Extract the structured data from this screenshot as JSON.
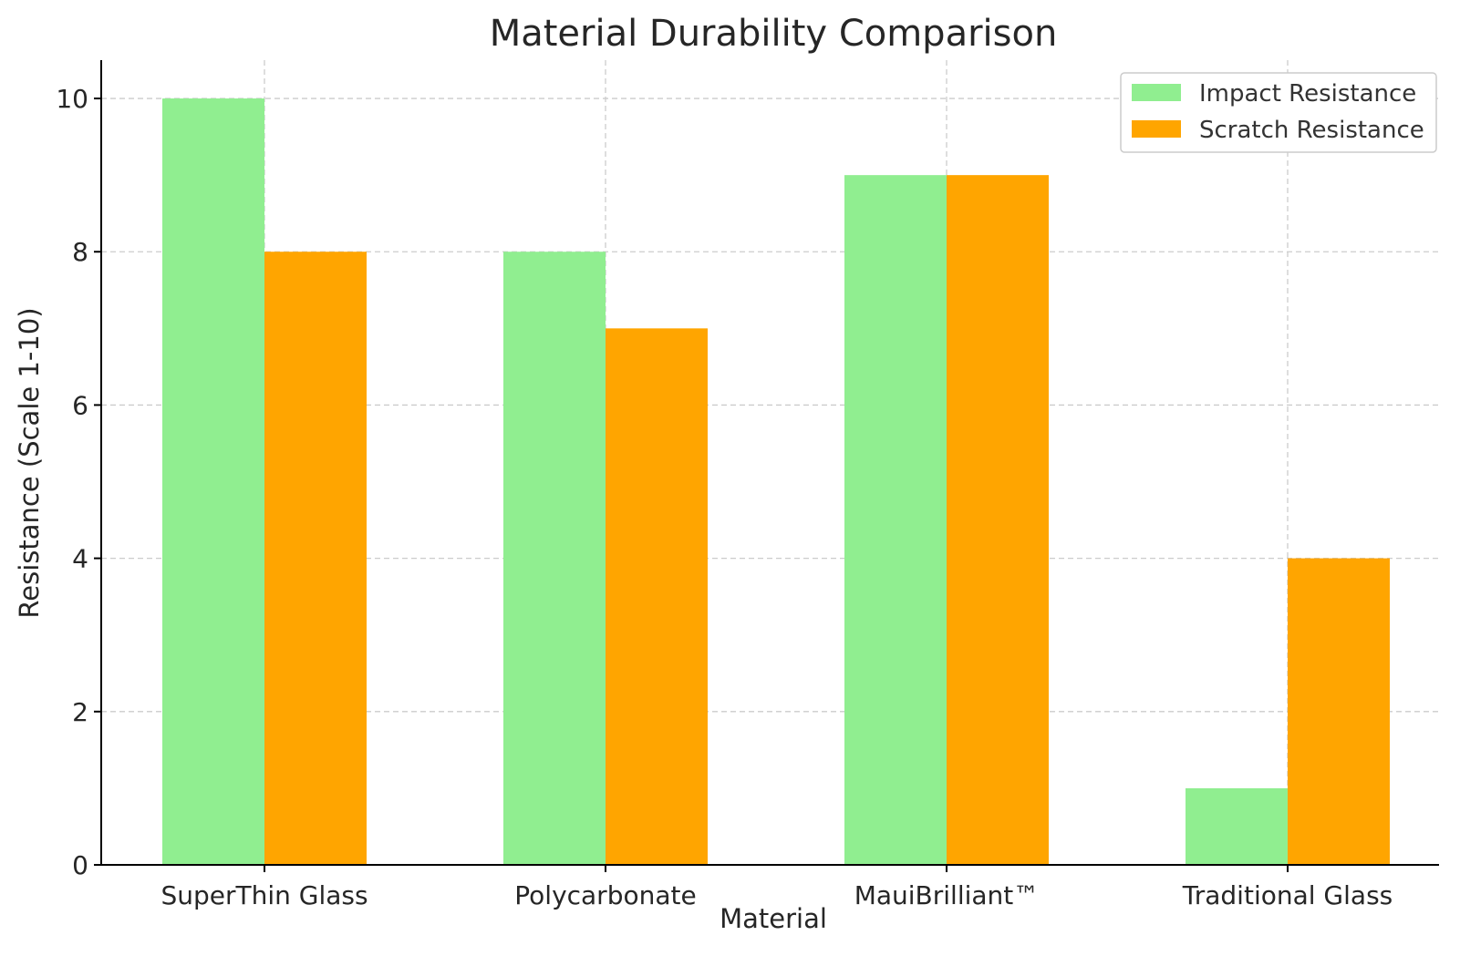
{
  "chart_data": {
    "type": "bar",
    "title": "Material Durability Comparison",
    "xlabel": "Material",
    "ylabel": "Resistance (Scale 1-10)",
    "categories": [
      "SuperThin Glass",
      "Polycarbonate",
      "MauiBrilliant™",
      "Traditional Glass"
    ],
    "series": [
      {
        "name": "Impact Resistance",
        "values": [
          10,
          8,
          9,
          1
        ],
        "color": "#90ee90"
      },
      {
        "name": "Scratch Resistance",
        "values": [
          8,
          7,
          9,
          4
        ],
        "color": "#ffa500"
      }
    ],
    "ylim": [
      0,
      10.5
    ],
    "yticks": [
      0,
      2,
      4,
      6,
      8,
      10
    ],
    "grid": true,
    "legend_position": "top-right"
  }
}
